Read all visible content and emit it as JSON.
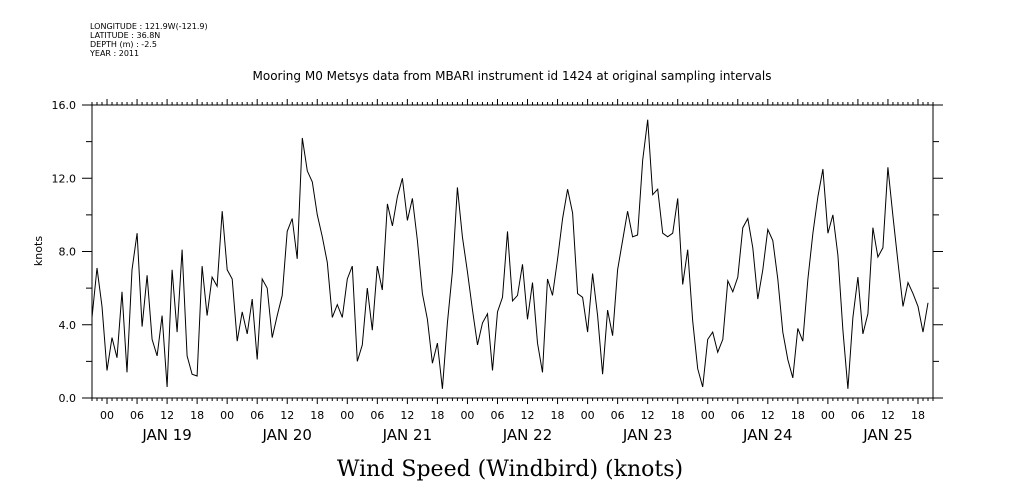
{
  "meta": {
    "longitude": "LONGITUDE : 121.9W(-121.9)",
    "latitude": "LATITUDE : 36.8N",
    "depth": "DEPTH (m) : -2.5",
    "year": "YEAR : 2011"
  },
  "chart_data": {
    "type": "line",
    "title": "Mooring M0 Metsys data from MBARI instrument id 1424 at original sampling intervals",
    "bottom_title": "Wind Speed (Windbird) (knots)",
    "ylabel": "knots",
    "ylim": [
      0,
      16
    ],
    "yticks": [
      "0.0",
      "4.0",
      "8.0",
      "12.0",
      "16.0"
    ],
    "x_hour_labels": [
      "00",
      "06",
      "12",
      "18",
      "00",
      "06",
      "12",
      "18",
      "00",
      "06",
      "12",
      "18",
      "00",
      "06",
      "12",
      "18",
      "00",
      "06",
      "12",
      "18",
      "00",
      "06",
      "12",
      "18",
      "00",
      "06",
      "12",
      "18"
    ],
    "x_day_labels": [
      "JAN 19",
      "JAN 20",
      "JAN 21",
      "JAN 22",
      "JAN 23",
      "JAN 24",
      "JAN 25"
    ],
    "xlim_hours": [
      -3,
      165
    ],
    "grid": false,
    "series": [
      {
        "x_hours": [
          -3,
          -2,
          -1,
          0,
          1,
          2,
          3,
          4,
          5,
          6,
          7,
          8,
          9,
          10,
          11,
          12,
          13,
          14,
          15,
          16,
          17,
          18,
          19,
          20,
          21,
          22,
          23,
          24,
          25,
          26,
          27,
          28,
          29,
          30,
          31,
          32,
          33,
          34,
          35,
          36,
          37,
          38,
          39,
          40,
          41,
          42,
          43,
          44,
          45,
          46,
          47,
          48,
          49,
          50,
          51,
          52,
          53,
          54,
          55,
          56,
          57,
          58,
          59,
          60,
          61,
          62,
          63,
          64,
          65,
          66,
          67,
          68,
          69,
          70,
          71,
          72,
          73,
          74,
          75,
          76,
          77,
          78,
          79,
          80,
          81,
          82,
          83,
          84,
          85,
          86,
          87,
          88,
          89,
          90,
          91,
          92,
          93,
          94,
          95,
          96,
          97,
          98,
          99,
          100,
          101,
          102,
          103,
          104,
          105,
          106,
          107,
          108,
          109,
          110,
          111,
          112,
          113,
          114,
          115,
          116,
          117,
          118,
          119,
          120,
          121,
          122,
          123,
          124,
          125,
          126,
          127,
          128,
          129,
          130,
          131,
          132,
          133,
          134,
          135,
          136,
          137,
          138,
          139,
          140,
          141,
          142,
          143,
          144,
          145,
          146,
          147,
          148,
          149,
          150,
          151,
          152,
          153,
          154,
          155,
          156,
          157,
          158,
          159,
          160,
          161,
          162,
          163,
          164
        ],
        "values": [
          4.4,
          7.1,
          5.0,
          1.5,
          3.3,
          2.2,
          5.8,
          1.4,
          7.0,
          9.0,
          3.9,
          6.7,
          3.2,
          2.3,
          4.5,
          0.6,
          7.0,
          3.6,
          8.1,
          2.3,
          1.3,
          1.2,
          7.2,
          4.5,
          6.6,
          6.1,
          10.2,
          7.0,
          6.5,
          3.1,
          4.7,
          3.5,
          5.4,
          2.1,
          6.5,
          6.0,
          3.3,
          4.5,
          5.6,
          9.1,
          9.8,
          7.6,
          14.2,
          12.4,
          11.8,
          10.0,
          8.8,
          7.4,
          4.4,
          5.1,
          4.4,
          6.5,
          7.2,
          2.0,
          2.9,
          6.0,
          3.7,
          7.2,
          5.9,
          10.6,
          9.4,
          11.0,
          12.0,
          9.7,
          10.9,
          8.6,
          5.7,
          4.3,
          1.9,
          3.0,
          0.5,
          4.1,
          6.9,
          11.5,
          8.8,
          6.9,
          4.8,
          2.9,
          4.1,
          4.6,
          1.5,
          4.7,
          5.5,
          9.1,
          5.3,
          5.6,
          7.3,
          4.3,
          6.3,
          3.0,
          1.4,
          6.5,
          5.6,
          7.6,
          9.8,
          11.4,
          10.1,
          5.7,
          5.5,
          3.6,
          6.8,
          4.5,
          1.3,
          4.8,
          3.4,
          7.0,
          8.6,
          10.2,
          8.8,
          8.9,
          13.0,
          15.2,
          11.1,
          11.4,
          9.0,
          8.8,
          9.0,
          10.9,
          6.2,
          8.1,
          4.2,
          1.6,
          0.6,
          3.2,
          3.6,
          2.5,
          3.2,
          6.4,
          5.8,
          6.6,
          9.3,
          9.8,
          8.2,
          5.4,
          7.0,
          9.2,
          8.6,
          6.5,
          3.6,
          2.1,
          1.1,
          3.8,
          3.1,
          6.5,
          9.0,
          11.0,
          12.5,
          9.0,
          10.0,
          7.8,
          3.7,
          0.5,
          4.4,
          6.6,
          3.5,
          4.6,
          9.3,
          7.7,
          8.2,
          12.6,
          9.9,
          7.4,
          5.0,
          6.3,
          5.7,
          5.0,
          3.6,
          5.2
        ]
      }
    ]
  }
}
